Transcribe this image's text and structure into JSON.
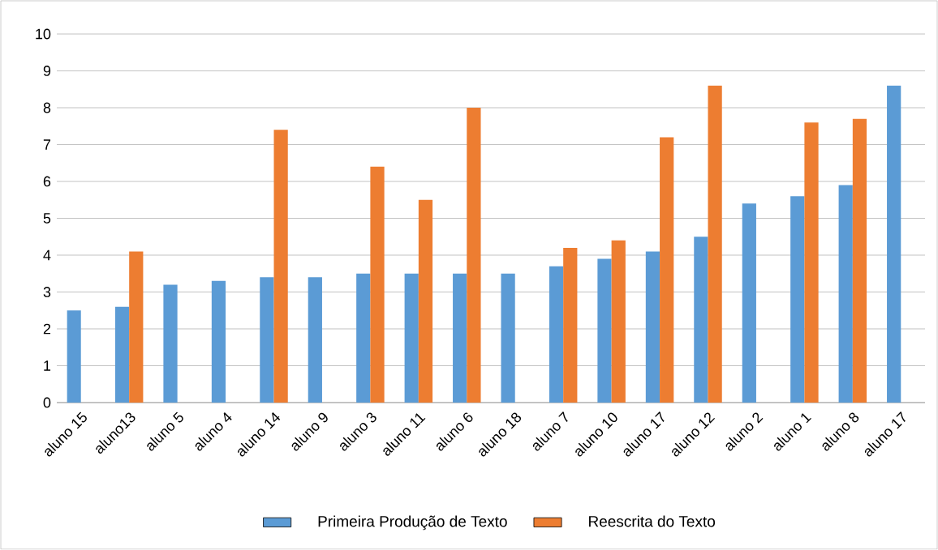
{
  "chart_data": {
    "type": "bar",
    "categories": [
      "aluno 15",
      "aluno13",
      "aluno 5",
      "aluno 4",
      "aluno 14",
      "aluno 9",
      "aluno 3",
      "aluno 11",
      "aluno 6",
      "aluno 18",
      "aluno 7",
      "aluno 10",
      "aluno 17",
      "aluno 12",
      "aluno 2",
      "aluno 1",
      "aluno 8",
      "aluno 17"
    ],
    "series": [
      {
        "name": "Primeira Produção de Texto",
        "color": "#5b9bd5",
        "values": [
          2.5,
          2.6,
          3.2,
          3.3,
          3.4,
          3.4,
          3.5,
          3.5,
          3.5,
          3.5,
          3.7,
          3.9,
          4.1,
          4.5,
          5.4,
          5.6,
          5.9,
          8.6
        ]
      },
      {
        "name": "Reescrita do Texto",
        "color": "#ed7d31",
        "values": [
          null,
          4.1,
          null,
          null,
          7.4,
          null,
          6.4,
          5.5,
          8.0,
          null,
          4.2,
          4.4,
          7.2,
          8.6,
          null,
          7.6,
          7.7,
          null
        ]
      }
    ],
    "ylim": [
      0,
      10
    ],
    "yticks": [
      0,
      1,
      2,
      3,
      4,
      5,
      6,
      7,
      8,
      9,
      10
    ],
    "grid": "y",
    "legend": "bottom"
  }
}
